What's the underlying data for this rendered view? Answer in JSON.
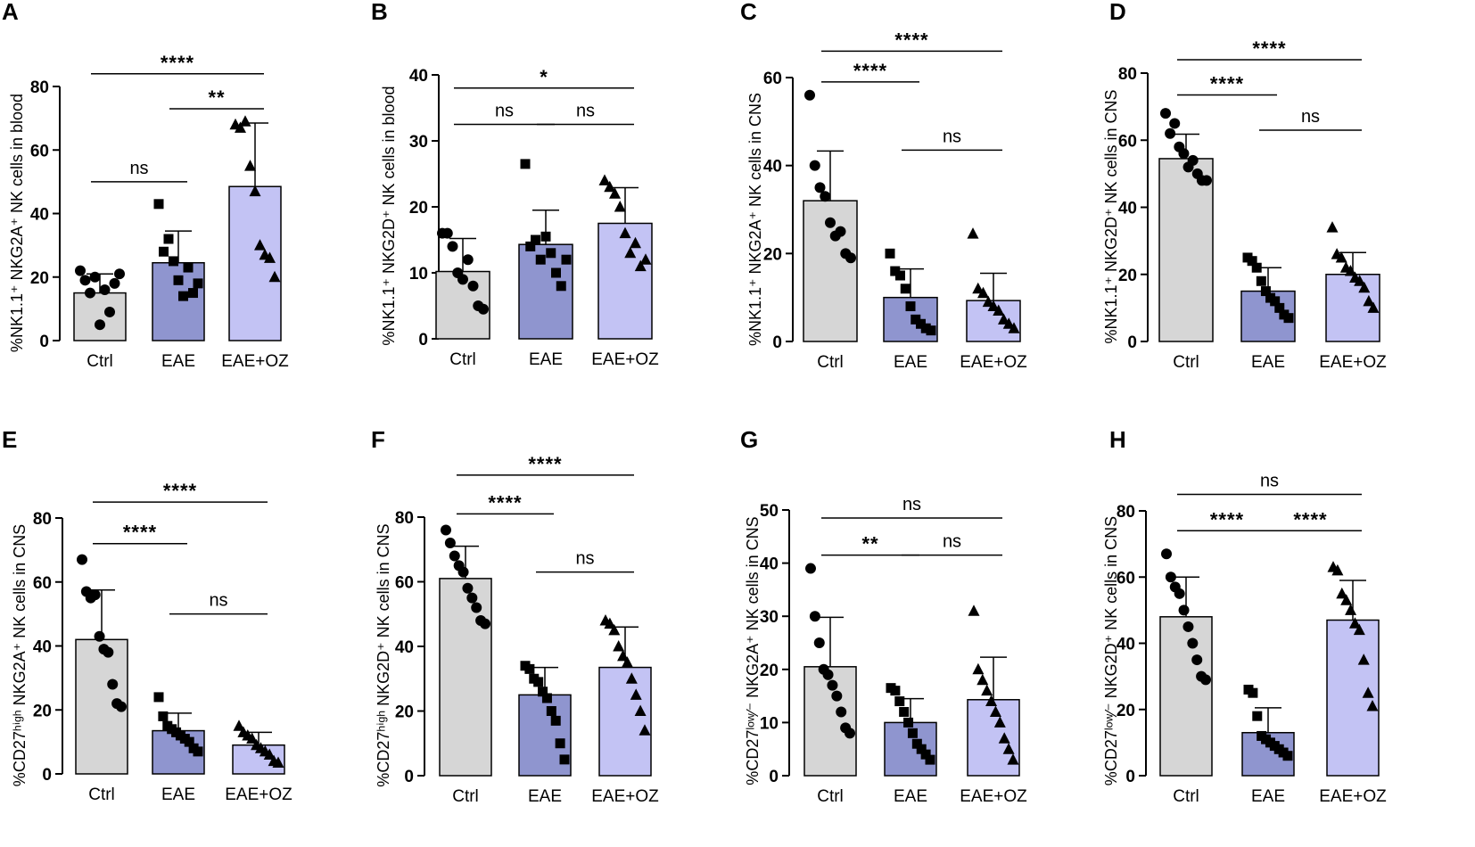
{
  "colors": {
    "ctrl": "#d6d6d6",
    "eae": "#8f95cf",
    "eaeoz": "#c3c3f4",
    "ink": "#000000"
  },
  "chart_data": [
    {
      "type": "bar",
      "panel": "A",
      "ylabel": "%NK1.1⁺ NKG2A⁺ NK cells in blood",
      "categories": [
        "Ctrl",
        "EAE",
        "EAE+OZ"
      ],
      "ylim": [
        0,
        80
      ],
      "yticks": [
        "0",
        "20",
        "40",
        "60",
        "80"
      ],
      "marker": "circle",
      "means": [
        15,
        24.5,
        48.5
      ],
      "errors": [
        6,
        10,
        20
      ],
      "points": [
        [
          22,
          19,
          15,
          20,
          5,
          16,
          9,
          18,
          21
        ],
        [
          43,
          28,
          32,
          25,
          19,
          14,
          23,
          15,
          18
        ],
        [
          68,
          67,
          69,
          55,
          47,
          30,
          27,
          26,
          20
        ]
      ],
      "comparisons": [
        {
          "from": 0,
          "to": 1,
          "label": "ns",
          "y": 50
        },
        {
          "from": 1,
          "to": 2,
          "label": "**",
          "y": 73
        },
        {
          "from": 0,
          "to": 2,
          "label": "****",
          "y": 84
        }
      ]
    },
    {
      "type": "bar",
      "panel": "B",
      "ylabel": "%NK1.1⁺ NKG2D⁺ NK cells in blood",
      "categories": [
        "Ctrl",
        "EAE",
        "EAE+OZ"
      ],
      "ylim": [
        0,
        40
      ],
      "yticks": [
        "0",
        "10",
        "20",
        "30",
        "40"
      ],
      "marker": "circle",
      "means": [
        10.2,
        14.3,
        17.5
      ],
      "errors": [
        5,
        5.2,
        5.4
      ],
      "points": [
        [
          16,
          16,
          14,
          10,
          9,
          12,
          8,
          5,
          4.5
        ],
        [
          26.5,
          14,
          15,
          12,
          15.5,
          13,
          10,
          8,
          12
        ],
        [
          24,
          23,
          22,
          20,
          16,
          13,
          14.5,
          11,
          12
        ]
      ],
      "comparisons": [
        {
          "from": 0,
          "to": 1,
          "label": "ns",
          "y": 32.5
        },
        {
          "from": 1,
          "to": 2,
          "label": "ns",
          "y": 32.5
        },
        {
          "from": 0,
          "to": 2,
          "label": "*",
          "y": 38
        }
      ]
    },
    {
      "type": "bar",
      "panel": "C",
      "ylabel": "%NK1.1⁺ NKG2A⁺ NK cells in CNS",
      "categories": [
        "Ctrl",
        "EAE",
        "EAE+OZ"
      ],
      "ylim": [
        0,
        60
      ],
      "yticks": [
        "0",
        "20",
        "40",
        "60"
      ],
      "marker": "circle",
      "means": [
        32,
        10,
        9.3
      ],
      "errors": [
        11.3,
        6.5,
        6.2
      ],
      "points": [
        [
          56,
          40,
          35,
          33,
          27,
          24,
          25,
          20,
          19
        ],
        [
          20,
          16,
          15,
          12,
          8,
          5,
          4,
          3,
          2.5
        ],
        [
          24.5,
          12,
          11,
          9,
          8,
          7,
          5,
          4,
          3
        ]
      ],
      "comparisons": [
        {
          "from": 0,
          "to": 1,
          "label": "****",
          "y": 59
        },
        {
          "from": 1,
          "to": 2,
          "label": "ns",
          "y": 43.5
        },
        {
          "from": 0,
          "to": 2,
          "label": "****",
          "y": 66
        }
      ]
    },
    {
      "type": "bar",
      "panel": "D",
      "ylabel": "%NK1.1⁺ NKG2D⁺ NK cells in CNS",
      "categories": [
        "Ctrl",
        "EAE",
        "EAE+OZ"
      ],
      "ylim": [
        0,
        80
      ],
      "yticks": [
        "0",
        "20",
        "40",
        "60",
        "80"
      ],
      "marker": "circle",
      "means": [
        54.5,
        15,
        20
      ],
      "errors": [
        7.3,
        7,
        6.5
      ],
      "points": [
        [
          68,
          62,
          65,
          58,
          56,
          52,
          54,
          50,
          48,
          48
        ],
        [
          25,
          24,
          22,
          18,
          15,
          13,
          12,
          10,
          8,
          7
        ],
        [
          34,
          26,
          25,
          22,
          21,
          19,
          18,
          16,
          12,
          10
        ]
      ],
      "comparisons": [
        {
          "from": 0,
          "to": 1,
          "label": "****",
          "y": 73.5
        },
        {
          "from": 1,
          "to": 2,
          "label": "ns",
          "y": 63
        },
        {
          "from": 0,
          "to": 2,
          "label": "****",
          "y": 84
        }
      ]
    },
    {
      "type": "bar",
      "panel": "E",
      "ylabel": "%CD27ʰⁱᵍʰ NKG2A⁺ NK cells in CNS",
      "categories": [
        "Ctrl",
        "EAE",
        "EAE+OZ"
      ],
      "ylim": [
        0,
        80
      ],
      "yticks": [
        "0",
        "20",
        "40",
        "60",
        "80"
      ],
      "marker": "circle",
      "means": [
        42,
        13.5,
        9
      ],
      "errors": [
        15.5,
        5.5,
        4
      ],
      "points": [
        [
          67,
          57,
          55,
          56,
          43,
          39,
          38,
          28,
          22,
          21
        ],
        [
          24,
          18,
          15,
          14,
          13,
          12,
          11,
          10,
          8,
          7
        ],
        [
          15,
          13,
          12,
          11,
          9,
          8,
          7,
          6,
          4,
          3.5
        ]
      ],
      "comparisons": [
        {
          "from": 0,
          "to": 1,
          "label": "****",
          "y": 72
        },
        {
          "from": 1,
          "to": 2,
          "label": "ns",
          "y": 50
        },
        {
          "from": 0,
          "to": 2,
          "label": "****",
          "y": 85
        }
      ]
    },
    {
      "type": "bar",
      "panel": "F",
      "ylabel": "%CD27ʰⁱᵍʰ NKG2D⁺ NK cells in CNS",
      "categories": [
        "Ctrl",
        "EAE",
        "EAE+OZ"
      ],
      "ylim": [
        0,
        80
      ],
      "yticks": [
        "0",
        "20",
        "40",
        "60",
        "80"
      ],
      "marker": "circle",
      "means": [
        61,
        25,
        33.5
      ],
      "errors": [
        10,
        8.5,
        12.5
      ],
      "points": [
        [
          76,
          72,
          68,
          65,
          63,
          58,
          55,
          52,
          48,
          47
        ],
        [
          34,
          33,
          30,
          29,
          26,
          24,
          20,
          17,
          10,
          5
        ],
        [
          48,
          47,
          45,
          40,
          37,
          35,
          30,
          25,
          20,
          14
        ]
      ],
      "comparisons": [
        {
          "from": 0,
          "to": 1,
          "label": "****",
          "y": 81
        },
        {
          "from": 1,
          "to": 2,
          "label": "ns",
          "y": 63
        },
        {
          "from": 0,
          "to": 2,
          "label": "****",
          "y": 93
        }
      ]
    },
    {
      "type": "bar",
      "panel": "G",
      "ylabel": "%CD27ˡᵒʷ⁄⁻ NKG2A⁺ NK cells in CNS",
      "categories": [
        "Ctrl",
        "EAE",
        "EAE+OZ"
      ],
      "ylim": [
        0,
        50
      ],
      "yticks": [
        "0",
        "10",
        "20",
        "30",
        "40",
        "50"
      ],
      "marker": "circle",
      "means": [
        20.5,
        10,
        14.3
      ],
      "errors": [
        9.3,
        4.5,
        8
      ],
      "points": [
        [
          39,
          30,
          25,
          20,
          19,
          17,
          15,
          12,
          9,
          8
        ],
        [
          16.5,
          16,
          14,
          12,
          10,
          8,
          6,
          5,
          4,
          3
        ],
        [
          31,
          20,
          18,
          16,
          14,
          12,
          10,
          7,
          5,
          3
        ]
      ],
      "comparisons": [
        {
          "from": 0,
          "to": 1,
          "label": "**",
          "y": 41.5
        },
        {
          "from": 1,
          "to": 2,
          "label": "ns",
          "y": 41.5
        },
        {
          "from": 0,
          "to": 2,
          "label": "ns",
          "y": 48.5
        }
      ]
    },
    {
      "type": "bar",
      "panel": "H",
      "ylabel": "%CD27ˡᵒʷ⁄⁻ NKG2D⁺ NK cells in CNS",
      "categories": [
        "Ctrl",
        "EAE",
        "EAE+OZ"
      ],
      "ylim": [
        0,
        80
      ],
      "yticks": [
        "0",
        "20",
        "40",
        "60",
        "80"
      ],
      "marker": "circle",
      "means": [
        48,
        13,
        47
      ],
      "errors": [
        12,
        7.5,
        12
      ],
      "points": [
        [
          67,
          60,
          57,
          55,
          50,
          45,
          40,
          35,
          30,
          29
        ],
        [
          26,
          25,
          18,
          12,
          11,
          10,
          9,
          8,
          7,
          6
        ],
        [
          63,
          62,
          55,
          53,
          50,
          46,
          44,
          35,
          25,
          21
        ]
      ],
      "comparisons": [
        {
          "from": 0,
          "to": 1,
          "label": "****",
          "y": 74
        },
        {
          "from": 1,
          "to": 2,
          "label": "****",
          "y": 74
        },
        {
          "from": 0,
          "to": 2,
          "label": "ns",
          "y": 85
        }
      ]
    }
  ]
}
